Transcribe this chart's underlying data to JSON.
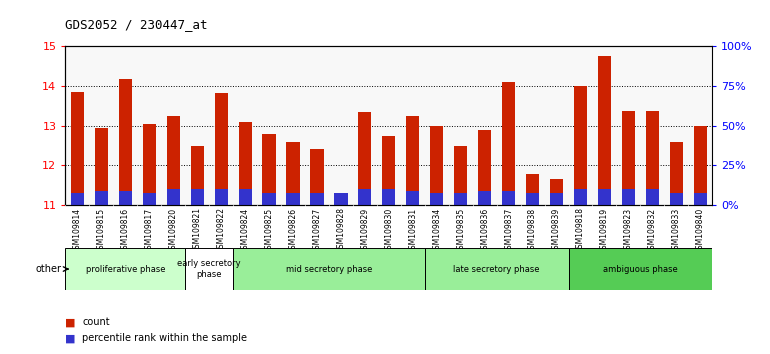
{
  "title": "GDS2052 / 230447_at",
  "samples": [
    "GSM109814",
    "GSM109815",
    "GSM109816",
    "GSM109817",
    "GSM109820",
    "GSM109821",
    "GSM109822",
    "GSM109824",
    "GSM109825",
    "GSM109826",
    "GSM109827",
    "GSM109828",
    "GSM109829",
    "GSM109830",
    "GSM109831",
    "GSM109834",
    "GSM109835",
    "GSM109836",
    "GSM109837",
    "GSM109838",
    "GSM109839",
    "GSM109818",
    "GSM109819",
    "GSM109823",
    "GSM109832",
    "GSM109833",
    "GSM109840"
  ],
  "count_values": [
    13.85,
    12.95,
    14.18,
    13.05,
    13.25,
    12.5,
    13.82,
    13.1,
    12.78,
    12.58,
    12.42,
    11.3,
    13.35,
    12.75,
    13.25,
    12.98,
    12.48,
    12.9,
    14.1,
    11.78,
    11.65,
    14.0,
    14.75,
    13.38,
    13.38,
    12.58,
    13.0
  ],
  "percentile_raw": [
    8,
    9,
    9,
    8,
    10,
    10,
    10,
    10,
    8,
    8,
    8,
    8,
    10,
    10,
    9,
    8,
    8,
    9,
    9,
    8,
    8,
    10,
    10,
    10,
    10,
    8,
    8
  ],
  "bar_bottom": 11.0,
  "ylim_left": [
    11.0,
    15.0
  ],
  "ylim_right": [
    0,
    100
  ],
  "yticks_left": [
    11,
    12,
    13,
    14,
    15
  ],
  "yticks_right": [
    0,
    25,
    50,
    75,
    100
  ],
  "ytick_labels_right": [
    "0%",
    "25%",
    "50%",
    "75%",
    "100%"
  ],
  "phases": [
    {
      "label": "proliferative phase",
      "start": 0,
      "end": 5,
      "color": "#ccffcc"
    },
    {
      "label": "early secretory\nphase",
      "start": 5,
      "end": 7,
      "color": "#ffffff"
    },
    {
      "label": "mid secretory phase",
      "start": 7,
      "end": 15,
      "color": "#99ee99"
    },
    {
      "label": "late secretory phase",
      "start": 15,
      "end": 21,
      "color": "#99ee99"
    },
    {
      "label": "ambiguous phase",
      "start": 21,
      "end": 27,
      "color": "#55cc55"
    }
  ],
  "bar_color_count": "#cc2200",
  "bar_color_percentile": "#3333cc",
  "bar_width": 0.55,
  "plot_bg": "#f8f8f8",
  "other_label": "other",
  "legend_count": "count",
  "legend_percentile": "percentile rank within the sample"
}
